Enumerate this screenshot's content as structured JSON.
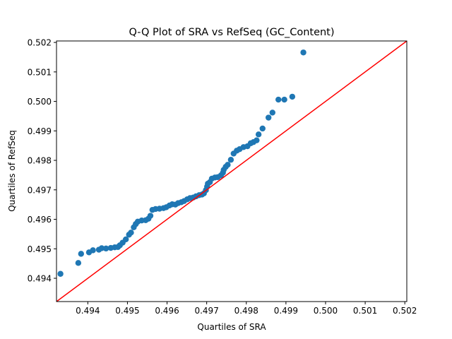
{
  "chart_data": {
    "type": "scatter",
    "title": "Q-Q Plot of SRA vs RefSeq (GC_Content)",
    "xlabel": "Quartiles of SRA",
    "ylabel": "Quartiles of RefSeq",
    "xlim": [
      0.49321,
      0.50205
    ],
    "ylim": [
      0.49321,
      0.50205
    ],
    "xticks": [
      0.494,
      0.495,
      0.496,
      0.497,
      0.498,
      0.499,
      0.5,
      0.501,
      0.502
    ],
    "yticks": [
      0.494,
      0.495,
      0.496,
      0.497,
      0.498,
      0.499,
      0.5,
      0.501,
      0.502
    ],
    "xtick_labels": [
      "0.494",
      "0.495",
      "0.496",
      "0.497",
      "0.498",
      "0.499",
      "0.500",
      "0.501",
      "0.502"
    ],
    "ytick_labels": [
      "0.494",
      "0.495",
      "0.496",
      "0.497",
      "0.498",
      "0.499",
      "0.500",
      "0.501",
      "0.502"
    ],
    "grid": false,
    "point_color": "#1f77b4",
    "reference_line": {
      "from": [
        0.49321,
        0.49321
      ],
      "to": [
        0.50205,
        0.50205
      ],
      "color": "#ff0000"
    },
    "points": [
      [
        0.49331,
        0.49415
      ],
      [
        0.49376,
        0.49452
      ],
      [
        0.49383,
        0.49483
      ],
      [
        0.49403,
        0.49488
      ],
      [
        0.49413,
        0.49495
      ],
      [
        0.49428,
        0.49497
      ],
      [
        0.49435,
        0.49502
      ],
      [
        0.49446,
        0.49501
      ],
      [
        0.49458,
        0.49503
      ],
      [
        0.49468,
        0.49505
      ],
      [
        0.49476,
        0.49506
      ],
      [
        0.49481,
        0.49512
      ],
      [
        0.49488,
        0.49521
      ],
      [
        0.49496,
        0.49532
      ],
      [
        0.49504,
        0.49548
      ],
      [
        0.49509,
        0.49555
      ],
      [
        0.49516,
        0.49573
      ],
      [
        0.49521,
        0.49584
      ],
      [
        0.49526,
        0.49592
      ],
      [
        0.49536,
        0.49596
      ],
      [
        0.49546,
        0.49597
      ],
      [
        0.49553,
        0.49602
      ],
      [
        0.49558,
        0.49612
      ],
      [
        0.49563,
        0.49632
      ],
      [
        0.49571,
        0.49635
      ],
      [
        0.49581,
        0.49636
      ],
      [
        0.49591,
        0.49638
      ],
      [
        0.49598,
        0.49641
      ],
      [
        0.49606,
        0.49647
      ],
      [
        0.49613,
        0.49651
      ],
      [
        0.49621,
        0.4965
      ],
      [
        0.49628,
        0.49655
      ],
      [
        0.49636,
        0.49658
      ],
      [
        0.49643,
        0.49662
      ],
      [
        0.49651,
        0.49668
      ],
      [
        0.49658,
        0.49672
      ],
      [
        0.49666,
        0.49674
      ],
      [
        0.49673,
        0.49678
      ],
      [
        0.49681,
        0.49682
      ],
      [
        0.49688,
        0.49684
      ],
      [
        0.49693,
        0.49688
      ],
      [
        0.49698,
        0.49699
      ],
      [
        0.49701,
        0.49711
      ],
      [
        0.49703,
        0.49721
      ],
      [
        0.49708,
        0.49726
      ],
      [
        0.49713,
        0.49738
      ],
      [
        0.49721,
        0.49742
      ],
      [
        0.49728,
        0.49743
      ],
      [
        0.49736,
        0.49749
      ],
      [
        0.49741,
        0.49758
      ],
      [
        0.49743,
        0.49768
      ],
      [
        0.49748,
        0.49778
      ],
      [
        0.49753,
        0.49785
      ],
      [
        0.49761,
        0.49802
      ],
      [
        0.49768,
        0.49823
      ],
      [
        0.49776,
        0.49833
      ],
      [
        0.49783,
        0.49838
      ],
      [
        0.49793,
        0.49845
      ],
      [
        0.49803,
        0.49848
      ],
      [
        0.49811,
        0.49858
      ],
      [
        0.49818,
        0.49862
      ],
      [
        0.49826,
        0.49868
      ],
      [
        0.49831,
        0.49888
      ],
      [
        0.49841,
        0.49908
      ],
      [
        0.49856,
        0.49945
      ],
      [
        0.49866,
        0.49962
      ],
      [
        0.49881,
        0.50006
      ],
      [
        0.49896,
        0.50006
      ],
      [
        0.49916,
        0.50016
      ],
      [
        0.49944,
        0.50166
      ]
    ]
  }
}
